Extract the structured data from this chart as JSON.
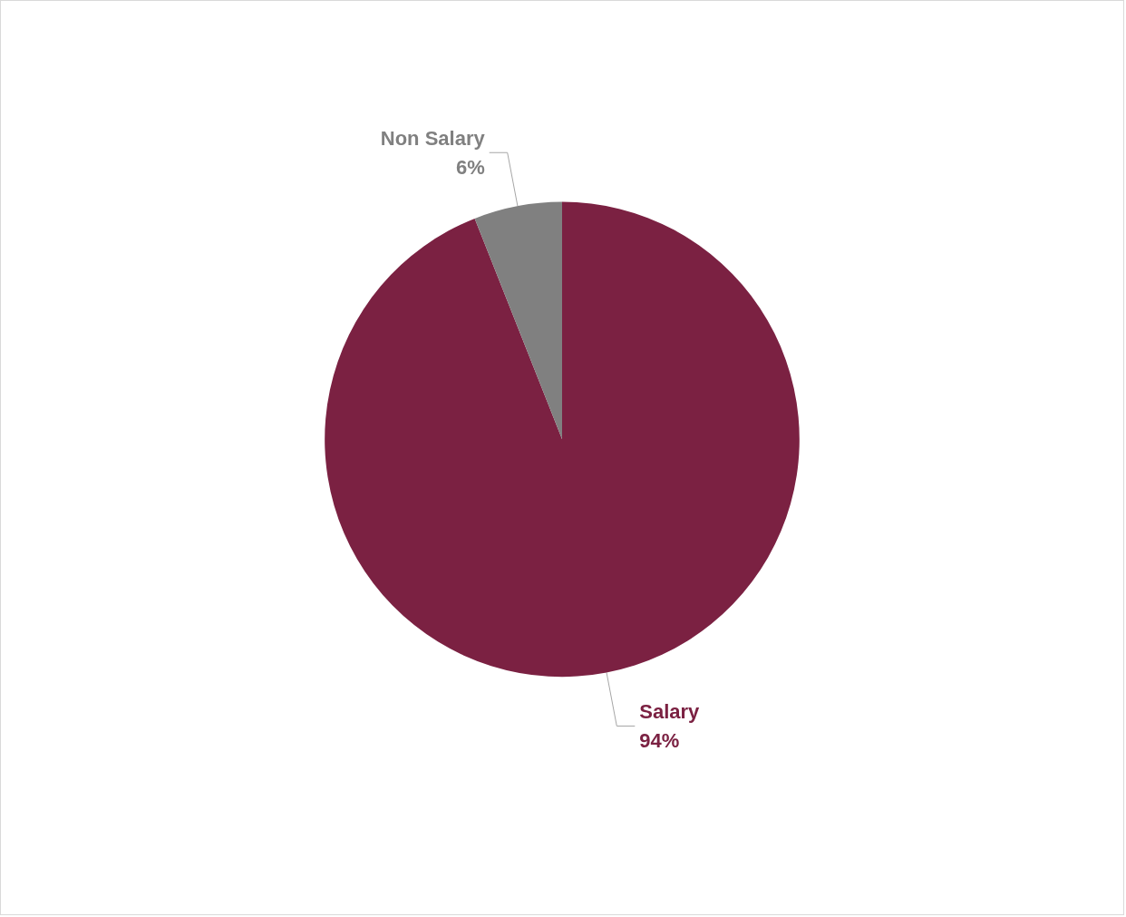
{
  "chart_data": {
    "type": "pie",
    "categories": [
      "Salary",
      "Non Salary"
    ],
    "values": [
      94,
      6
    ],
    "colors": [
      "#7b2142",
      "#808080"
    ],
    "value_labels": [
      "94%",
      "6%"
    ]
  }
}
